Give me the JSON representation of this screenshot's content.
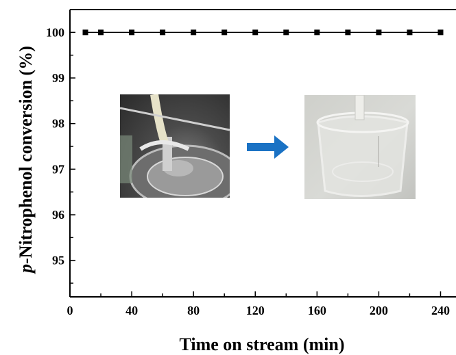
{
  "chart_data": {
    "type": "line",
    "xlabel": "Time on stream  (min)",
    "ylabel_italic": "p",
    "ylabel_rest": "-Nitrophenol conversion (%)",
    "xlim": [
      0,
      250
    ],
    "ylim": [
      94.2,
      100.5
    ],
    "xticks": [
      0,
      40,
      80,
      120,
      160,
      200,
      240
    ],
    "yticks": [
      95,
      96,
      97,
      98,
      99,
      100
    ],
    "grid": false,
    "legend": "none",
    "series": [
      {
        "x": [
          10,
          20,
          40,
          60,
          80,
          100,
          120,
          140,
          160,
          180,
          200,
          220,
          240
        ],
        "y": [
          100,
          100,
          100,
          100,
          100,
          100,
          100,
          100,
          100,
          100,
          100,
          100,
          100
        ]
      }
    ],
    "colors": {
      "series": "#000000",
      "arrow": "#1a72c4"
    }
  },
  "insets": {
    "photo_left": "flow-reactor-icon",
    "arrow": "right-arrow-icon",
    "photo_right": "beaker-icon"
  }
}
